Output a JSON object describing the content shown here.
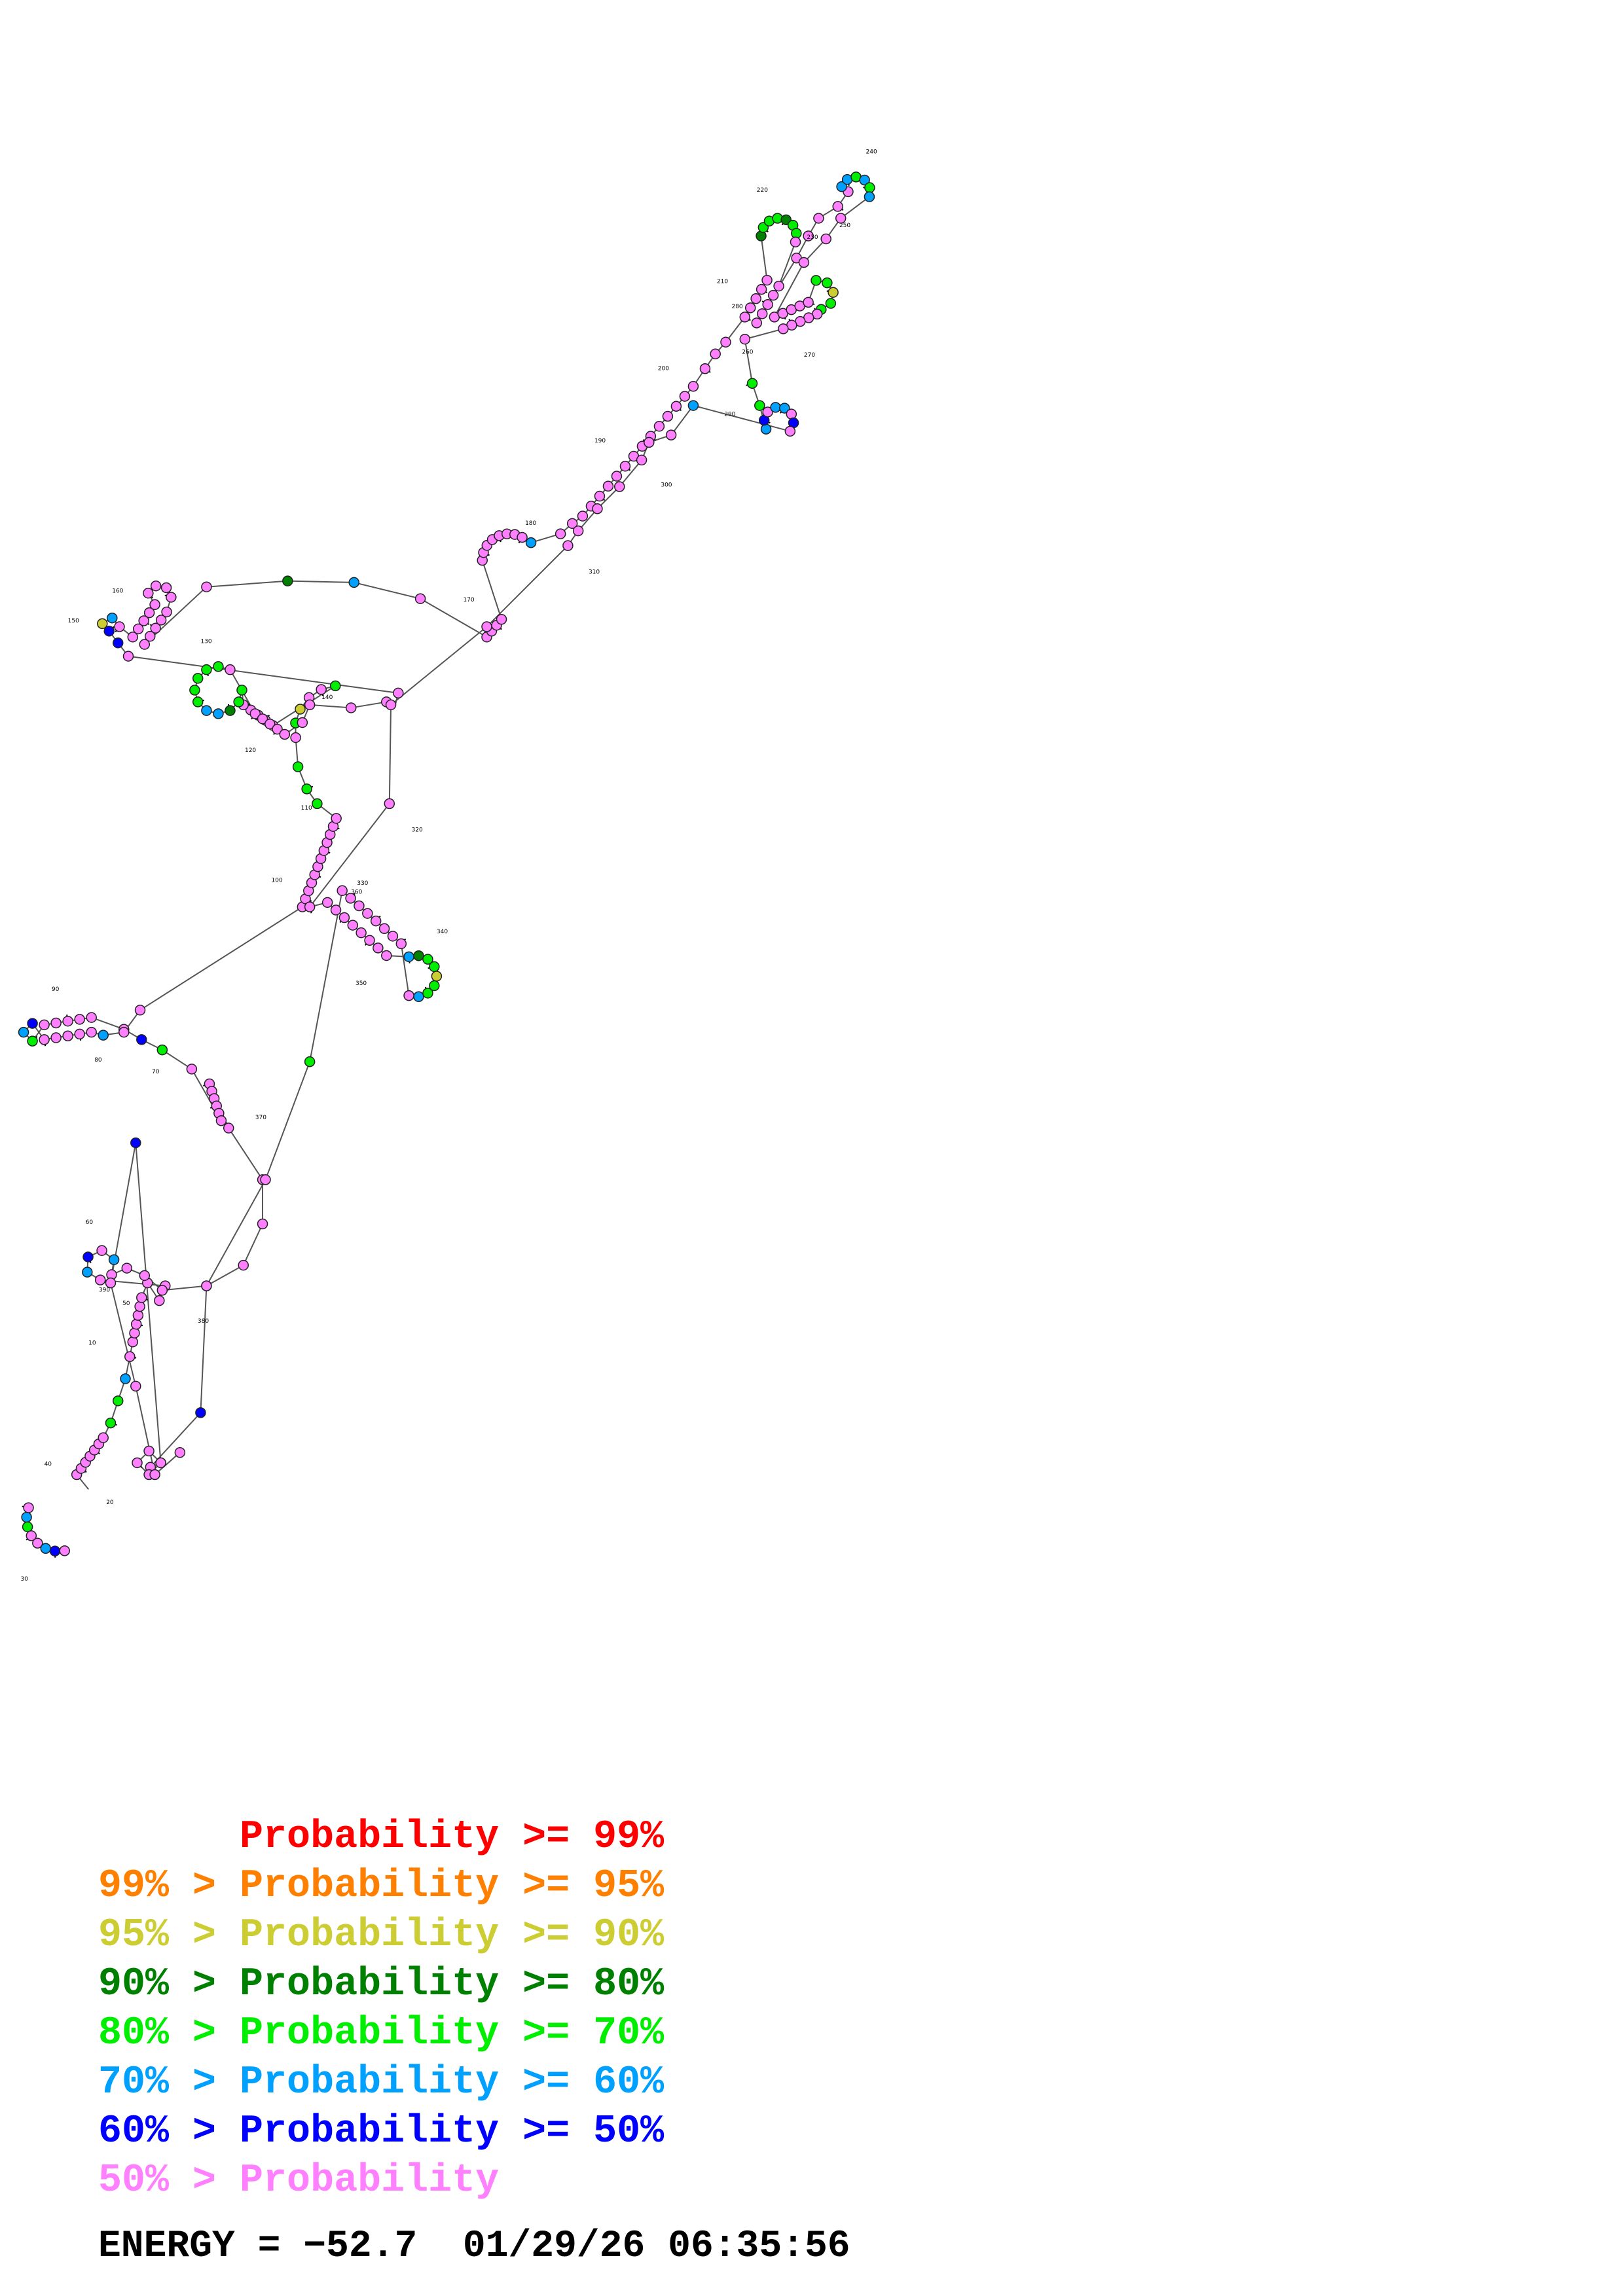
{
  "legend": [
    {
      "prefix": "",
      "label": "Probability >= 99%",
      "color": "#ff0000"
    },
    {
      "prefix": "99% > ",
      "label": "Probability >= 95%",
      "color": "#ff8000"
    },
    {
      "prefix": "95% > ",
      "label": "Probability >= 90%",
      "color": "#cccc33"
    },
    {
      "prefix": "90% > ",
      "label": "Probability >= 80%",
      "color": "#008000"
    },
    {
      "prefix": "80% > ",
      "label": "Probability >= 70%",
      "color": "#00ee00"
    },
    {
      "prefix": "70% > ",
      "label": "Probability >= 60%",
      "color": "#00a0ff"
    },
    {
      "prefix": "60% > ",
      "label": "Probability >= 50%",
      "color": "#0000ff"
    },
    {
      "prefix": "50% > ",
      "label": "Probability",
      "color": "#ff80ff"
    }
  ],
  "energy_text": "ENERGY = −52.7  01/29/26 06:35:56",
  "nucleotide_labels": [
    "10",
    "20",
    "30",
    "40",
    "50",
    "60",
    "70",
    "80",
    "90",
    "100",
    "110",
    "120",
    "130",
    "140",
    "150",
    "160",
    "170",
    "180",
    "190",
    "200",
    "210",
    "220",
    "230",
    "240",
    "250",
    "260",
    "270",
    "280",
    "290",
    "300",
    "310",
    "320",
    "330",
    "340",
    "350",
    "360",
    "370",
    "380",
    "390"
  ]
}
